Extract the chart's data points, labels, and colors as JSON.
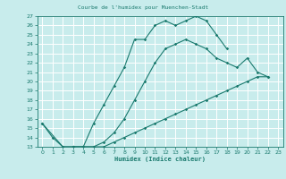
{
  "title": "Courbe de l'humidex pour Muenchen-Stadt",
  "xlabel": "Humidex (Indice chaleur)",
  "xlim": [
    -0.5,
    23.5
  ],
  "ylim": [
    13,
    27
  ],
  "xticks": [
    0,
    1,
    2,
    3,
    4,
    5,
    6,
    7,
    8,
    9,
    10,
    11,
    12,
    13,
    14,
    15,
    16,
    17,
    18,
    19,
    20,
    21,
    22,
    23
  ],
  "yticks": [
    13,
    14,
    15,
    16,
    17,
    18,
    19,
    20,
    21,
    22,
    23,
    24,
    25,
    26,
    27
  ],
  "bg_color": "#c8ecec",
  "grid_color": "#ffffff",
  "line_color": "#1a7a6e",
  "lines": [
    {
      "x": [
        0,
        1,
        2,
        3,
        4,
        5,
        6,
        7,
        8,
        9,
        10,
        11,
        12,
        13,
        14,
        15,
        16,
        17,
        18
      ],
      "y": [
        15.5,
        14.0,
        13.0,
        13.0,
        13.0,
        15.5,
        17.5,
        19.5,
        21.5,
        24.5,
        24.5,
        26.0,
        26.5,
        26.0,
        26.5,
        27.0,
        26.5,
        25.0,
        23.5
      ]
    },
    {
      "x": [
        3,
        4,
        5,
        6,
        7,
        8,
        9,
        10,
        11,
        12,
        13,
        14,
        15,
        16,
        17,
        18,
        19,
        20,
        21,
        22
      ],
      "y": [
        13.0,
        13.0,
        13.0,
        13.5,
        14.5,
        16.0,
        18.0,
        20.0,
        22.0,
        23.5,
        24.0,
        24.5,
        24.0,
        23.5,
        22.5,
        22.0,
        21.5,
        22.5,
        21.0,
        20.5
      ]
    },
    {
      "x": [
        0,
        2,
        3,
        4,
        5,
        6,
        7,
        8,
        9,
        10,
        11,
        12,
        13,
        14,
        15,
        16,
        17,
        18,
        19,
        20,
        21,
        22
      ],
      "y": [
        15.5,
        13.0,
        13.0,
        13.0,
        13.0,
        13.0,
        13.5,
        14.0,
        14.5,
        15.0,
        15.5,
        16.0,
        16.5,
        17.0,
        17.5,
        18.0,
        18.5,
        19.0,
        19.5,
        20.0,
        20.5,
        20.5
      ]
    }
  ]
}
